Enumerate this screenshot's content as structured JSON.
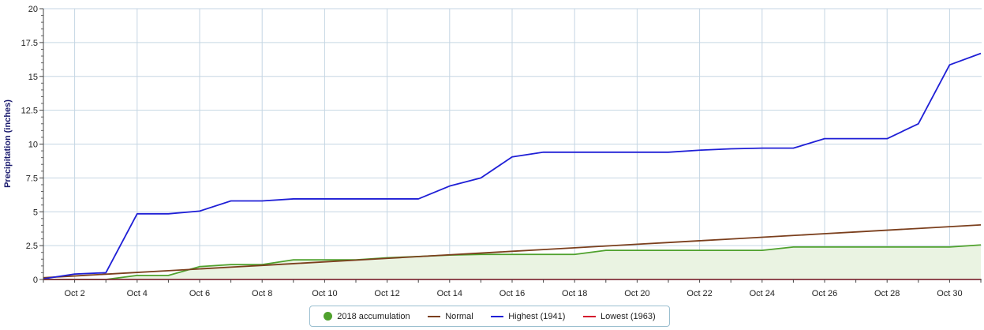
{
  "chart_data": {
    "type": "line",
    "title": "",
    "xlabel": "",
    "ylabel": "Precipitation (inches)",
    "ylim": [
      0,
      20
    ],
    "yticks": [
      0,
      2.5,
      5,
      7.5,
      10,
      12.5,
      15,
      17.5,
      20
    ],
    "ytick_labels": [
      "0",
      "2.5",
      "5",
      "7.5",
      "10",
      "12.5",
      "15",
      "17.5",
      "20"
    ],
    "x": [
      "Oct 1",
      "Oct 2",
      "Oct 3",
      "Oct 4",
      "Oct 5",
      "Oct 6",
      "Oct 7",
      "Oct 8",
      "Oct 9",
      "Oct 10",
      "Oct 11",
      "Oct 12",
      "Oct 13",
      "Oct 14",
      "Oct 15",
      "Oct 16",
      "Oct 17",
      "Oct 18",
      "Oct 19",
      "Oct 20",
      "Oct 21",
      "Oct 22",
      "Oct 23",
      "Oct 24",
      "Oct 25",
      "Oct 26",
      "Oct 27",
      "Oct 28",
      "Oct 29",
      "Oct 30",
      "Oct 31"
    ],
    "xtick_labels": [
      "Oct 2",
      "Oct 4",
      "Oct 6",
      "Oct 8",
      "Oct 10",
      "Oct 12",
      "Oct 14",
      "Oct 16",
      "Oct 18",
      "Oct 20",
      "Oct 22",
      "Oct 24",
      "Oct 26",
      "Oct 28",
      "Oct 30"
    ],
    "grid": true,
    "legend_position": "bottom-center",
    "series": [
      {
        "name": "2018 accumulation",
        "color": "#4fa12d",
        "fill": "#eaf3e2",
        "marker": "dot",
        "values": [
          0,
          0,
          0,
          0.3,
          0.3,
          0.95,
          1.1,
          1.1,
          1.45,
          1.45,
          1.45,
          1.6,
          1.7,
          1.8,
          1.85,
          1.85,
          1.85,
          1.85,
          2.15,
          2.15,
          2.15,
          2.15,
          2.15,
          2.15,
          2.4,
          2.4,
          2.4,
          2.4,
          2.4,
          2.4,
          2.55
        ]
      },
      {
        "name": "Normal",
        "color": "#7b3f1d",
        "values": [
          0.13,
          0.26,
          0.39,
          0.52,
          0.65,
          0.78,
          0.91,
          1.04,
          1.17,
          1.3,
          1.43,
          1.56,
          1.69,
          1.82,
          1.95,
          2.08,
          2.21,
          2.34,
          2.47,
          2.6,
          2.73,
          2.86,
          2.99,
          3.12,
          3.25,
          3.38,
          3.51,
          3.64,
          3.77,
          3.9,
          4.03
        ]
      },
      {
        "name": "Highest (1941)",
        "color": "#1f1fd6",
        "values": [
          0.05,
          0.4,
          0.5,
          4.85,
          4.85,
          5.05,
          5.8,
          5.8,
          5.95,
          5.95,
          5.95,
          5.95,
          5.95,
          6.9,
          7.5,
          9.05,
          9.4,
          9.4,
          9.4,
          9.4,
          9.4,
          9.55,
          9.65,
          9.7,
          9.7,
          10.4,
          10.4,
          10.4,
          11.5,
          15.85,
          16.7
        ]
      },
      {
        "name": "Lowest (1963)",
        "color": "#d4142c",
        "values": [
          0,
          0,
          0,
          0,
          0,
          0,
          0,
          0,
          0,
          0,
          0,
          0,
          0,
          0,
          0,
          0,
          0,
          0,
          0,
          0,
          0,
          0,
          0,
          0,
          0,
          0,
          0,
          0,
          0,
          0,
          0
        ]
      }
    ]
  }
}
